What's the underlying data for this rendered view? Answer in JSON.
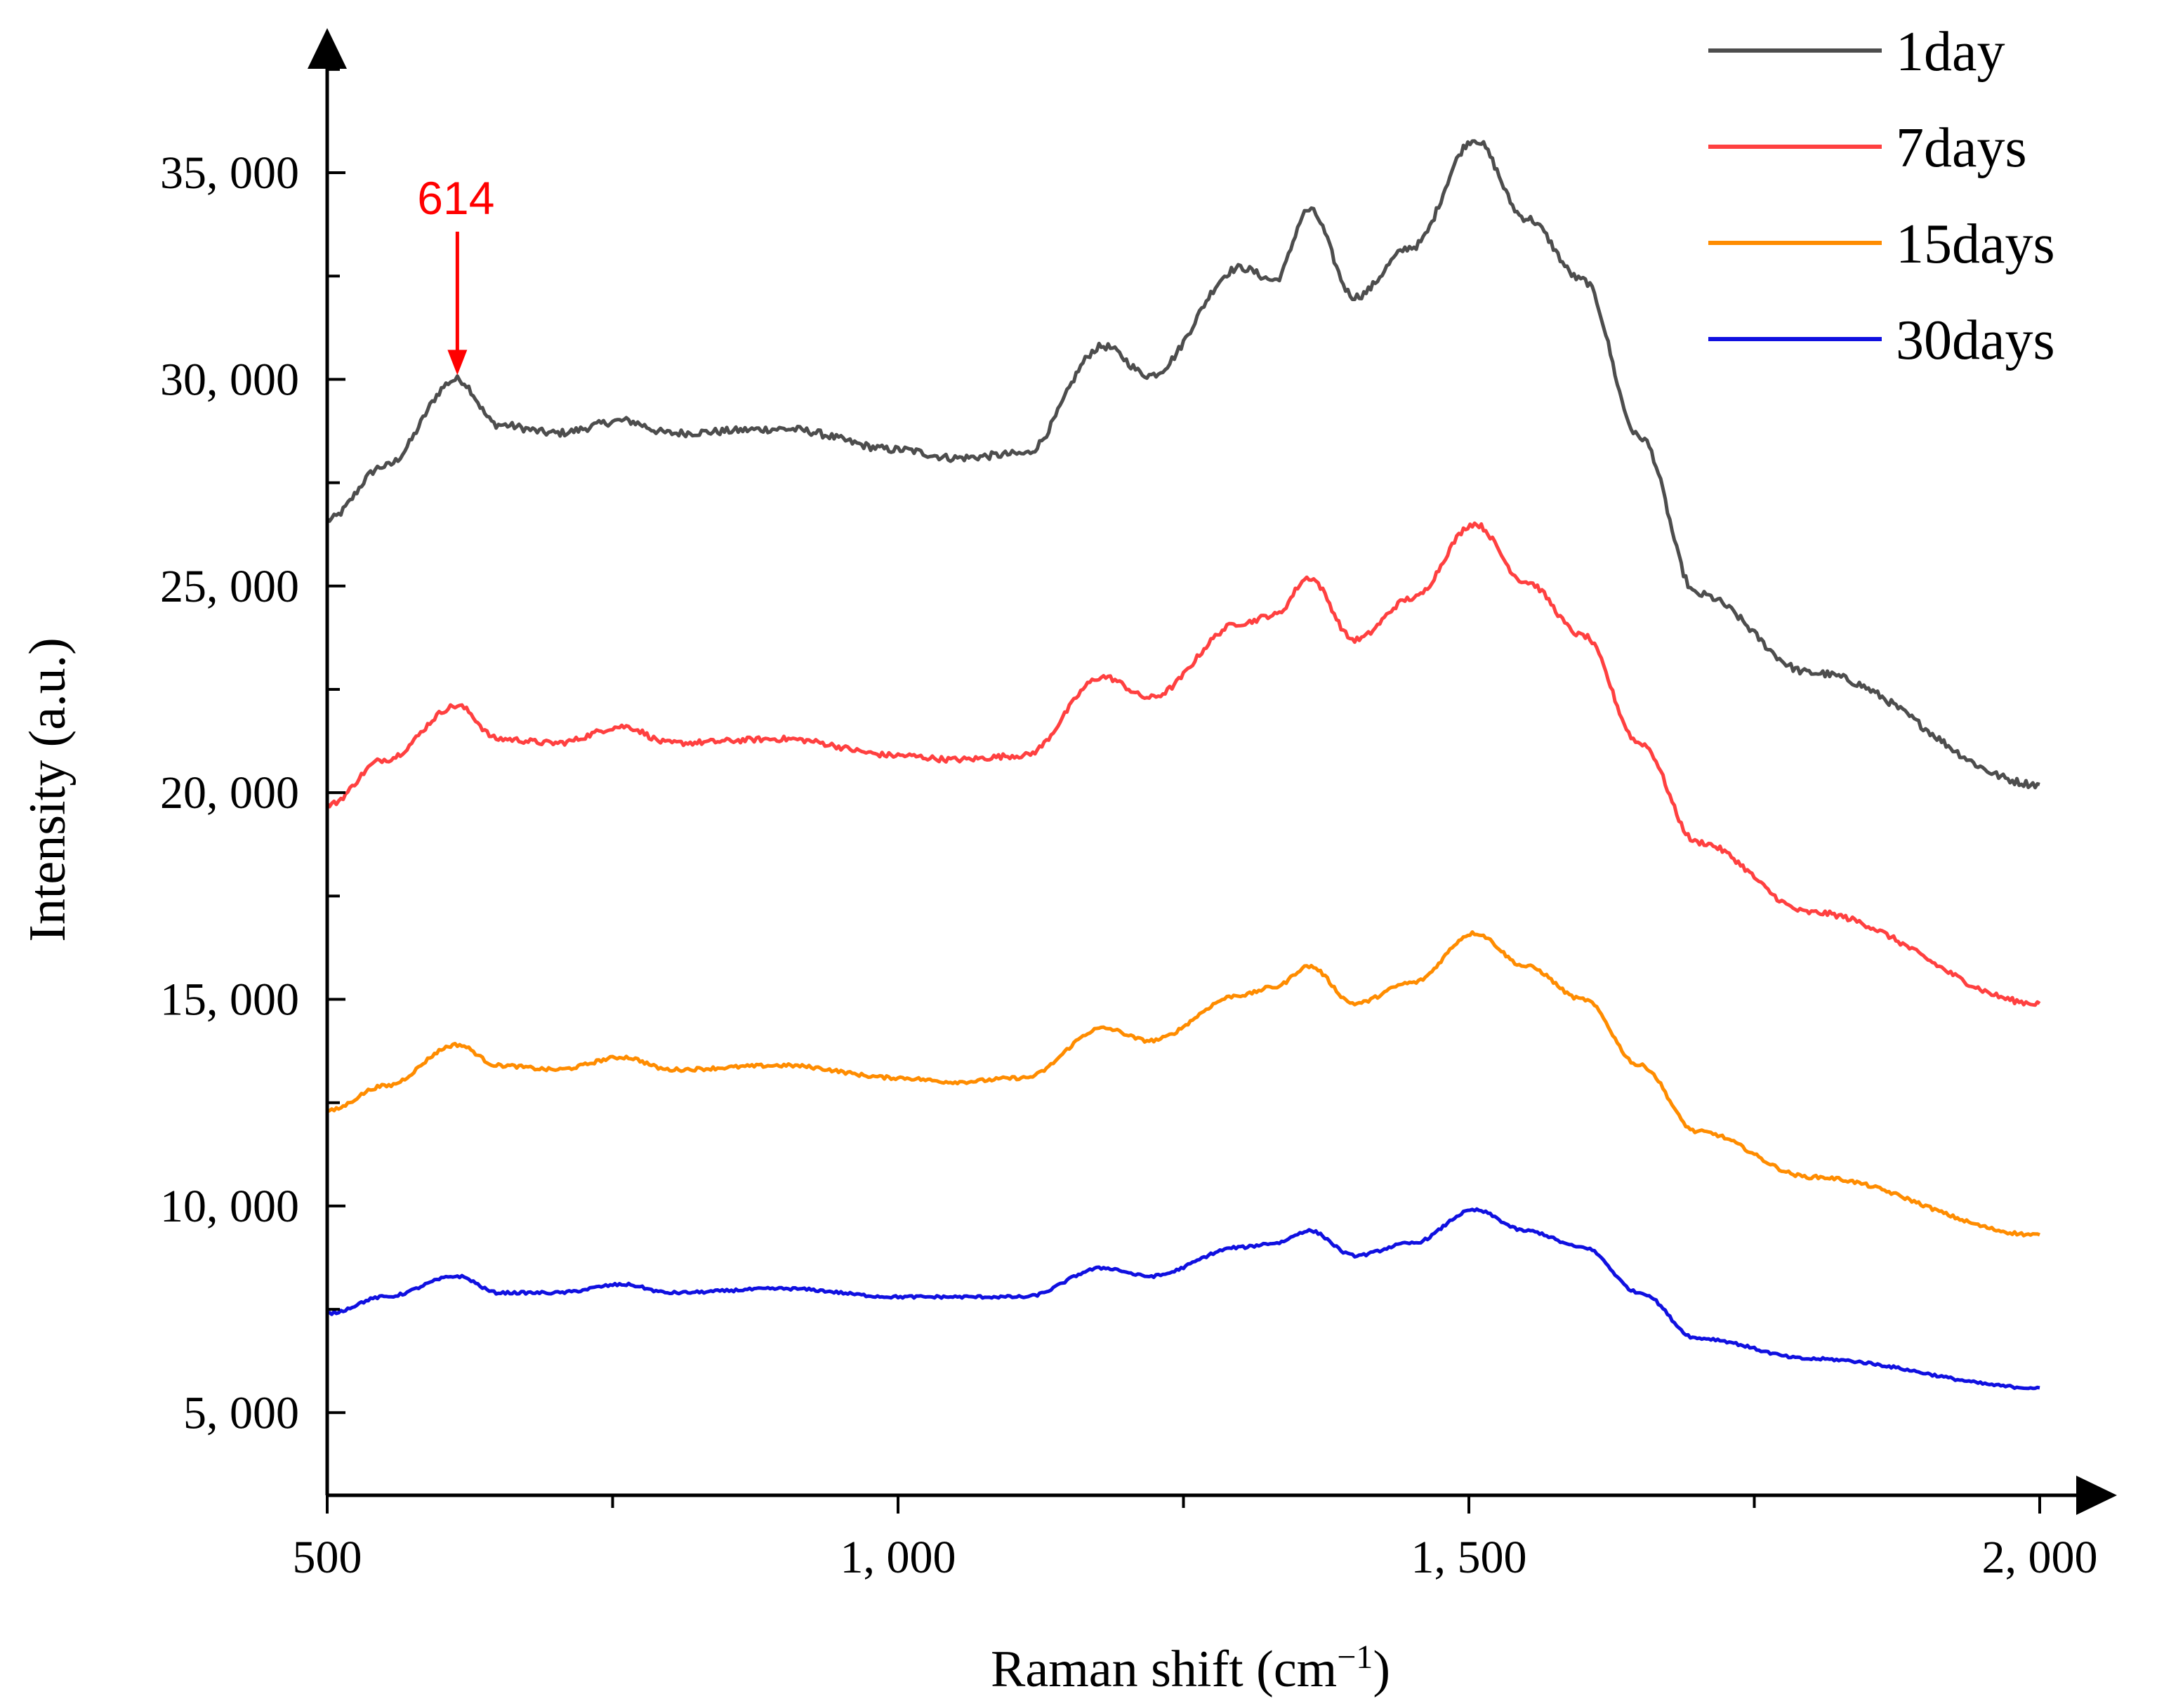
{
  "chart_data": {
    "type": "line",
    "title": "",
    "xlabel": "Raman shift (cm",
    "xlabel_sup": "−1",
    "xlabel_close": ")",
    "ylabel": "Intensity (a.u.)",
    "xlim": [
      500,
      2000
    ],
    "ylim": [
      3000,
      38500
    ],
    "x_ticks": [
      500,
      1000,
      1500,
      2000
    ],
    "x_tick_labels": [
      "500",
      "1, 000",
      "1, 500",
      "2, 000"
    ],
    "y_ticks": [
      5000,
      10000,
      15000,
      20000,
      25000,
      30000,
      35000
    ],
    "y_tick_labels": [
      "5, 000",
      "10, 000",
      "15, 000",
      "20, 000",
      "25, 000",
      "30, 000",
      "35, 000"
    ],
    "legend_position": "top-right",
    "annotations": [
      {
        "text": "614",
        "x": 614,
        "y": 30000,
        "color": "#ff0000"
      }
    ],
    "x": [
      500,
      550,
      614,
      650,
      700,
      760,
      800,
      900,
      1000,
      1050,
      1110,
      1180,
      1220,
      1300,
      1330,
      1360,
      1400,
      1450,
      1505,
      1550,
      1600,
      1650,
      1700,
      1800,
      2000
    ],
    "series": [
      {
        "name": "1day",
        "color": "#4d4d4d",
        "values": [
          26600,
          27900,
          30000,
          28900,
          28700,
          29000,
          28700,
          28800,
          28300,
          28100,
          28200,
          30800,
          30100,
          32700,
          32400,
          34100,
          32000,
          33200,
          35800,
          33900,
          32400,
          28600,
          24800,
          22900,
          20200
        ]
      },
      {
        "name": "7days",
        "color": "#ff4040",
        "values": [
          19700,
          20800,
          22100,
          21300,
          21200,
          21600,
          21200,
          21300,
          20900,
          20800,
          20900,
          22800,
          22300,
          24100,
          24300,
          25200,
          23700,
          24700,
          26500,
          25100,
          23800,
          21200,
          18800,
          17100,
          14900
        ]
      },
      {
        "name": "15days",
        "color": "#ff8c00",
        "values": [
          12300,
          12900,
          13900,
          13400,
          13300,
          13600,
          13300,
          13400,
          13100,
          13000,
          13100,
          14300,
          14000,
          15100,
          15300,
          15800,
          14900,
          15400,
          16600,
          15800,
          15000,
          13400,
          11800,
          10700,
          9300
        ]
      },
      {
        "name": "30days",
        "color": "#1010e0",
        "values": [
          7400,
          7800,
          8300,
          7900,
          7900,
          8100,
          7900,
          8000,
          7800,
          7800,
          7800,
          8500,
          8300,
          9000,
          9100,
          9400,
          8800,
          9100,
          9900,
          9400,
          9000,
          7900,
          6800,
          6300,
          5600
        ]
      }
    ]
  }
}
